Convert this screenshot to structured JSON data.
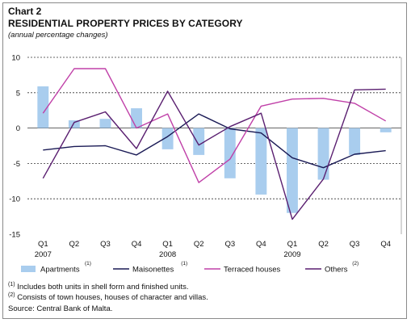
{
  "header": {
    "chart_number": "Chart 2",
    "title": "RESIDENTIAL PROPERTY PRICES BY CATEGORY",
    "subtitle": "(annual percentage changes)"
  },
  "footnotes": {
    "note1_mark": "(1)",
    "note1_text": "Includes both units in shell form and finished units.",
    "note2_mark": "(2)",
    "note2_text": "Consists of town houses, houses of character and villas.",
    "source": "Source: Central Bank of Malta."
  },
  "chart_data": {
    "type": "bar",
    "quarters": [
      "Q1",
      "Q2",
      "Q3",
      "Q4",
      "Q1",
      "Q2",
      "Q3",
      "Q4",
      "Q1",
      "Q2",
      "Q3",
      "Q4"
    ],
    "years": [
      "2007",
      "",
      "",
      "",
      "2008",
      "",
      "",
      "",
      "2009",
      "",
      "",
      ""
    ],
    "ylim": [
      -15,
      10
    ],
    "yticks": [
      10,
      5,
      0,
      -5,
      -10,
      -15
    ],
    "grid": "horizontal dashed",
    "legend_position": "bottom",
    "series": [
      {
        "name": "Apartments",
        "note": "(1)",
        "kind": "bar",
        "color": "#a9cdee",
        "values": [
          5.9,
          1.1,
          1.3,
          2.8,
          -3.0,
          -3.8,
          -7.1,
          -9.4,
          -12.0,
          -7.3,
          -3.8,
          -0.6
        ]
      },
      {
        "name": "Maisonettes",
        "note": "(1)",
        "kind": "line",
        "color": "#1a1a55",
        "values": [
          -3.1,
          -2.6,
          -2.5,
          -3.8,
          -1.2,
          2.0,
          -0.1,
          -0.7,
          -4.2,
          -5.6,
          -3.7,
          -3.2
        ]
      },
      {
        "name": "Terraced houses",
        "note": "",
        "kind": "line",
        "color": "#c040a8",
        "values": [
          2.1,
          8.4,
          8.4,
          0.0,
          2.0,
          -7.7,
          -4.4,
          3.1,
          4.1,
          4.2,
          3.5,
          1.0
        ]
      },
      {
        "name": "Others",
        "note": "(2)",
        "kind": "line",
        "color": "#5a1f70",
        "values": [
          -7.1,
          0.8,
          2.3,
          -2.9,
          5.2,
          -2.4,
          0.2,
          2.1,
          -12.9,
          -7.2,
          5.4,
          5.5
        ]
      }
    ]
  }
}
